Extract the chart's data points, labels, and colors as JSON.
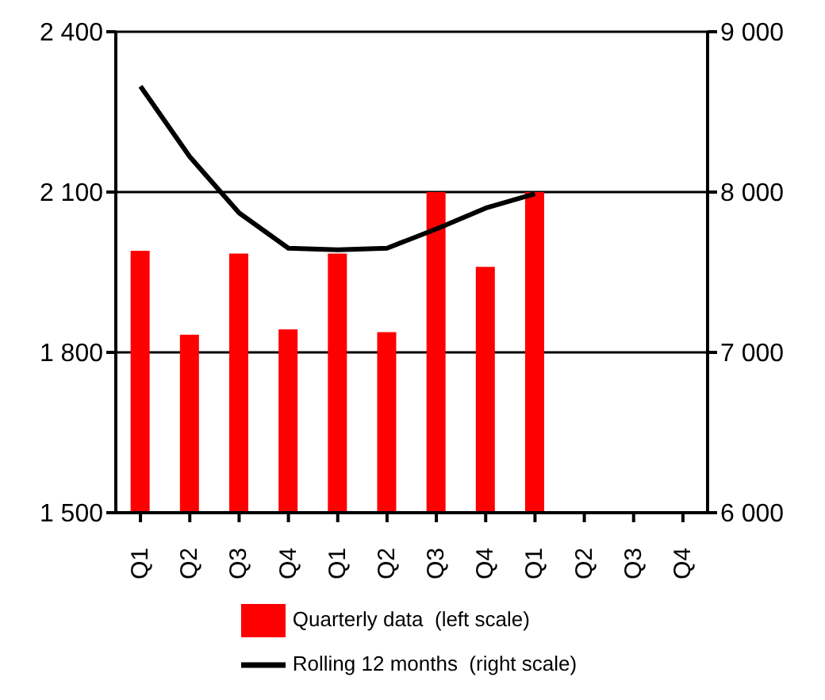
{
  "chart_data": {
    "type": "bar",
    "categories": [
      "Q1",
      "Q2",
      "Q3",
      "Q4",
      "Q1",
      "Q2",
      "Q3",
      "Q4",
      "Q1",
      "Q2",
      "Q3",
      "Q4"
    ],
    "series": [
      {
        "name": "Quarterly data  (left scale)",
        "color": "#ff0000",
        "values": [
          1990,
          1833,
          1985,
          1843,
          1985,
          1838,
          2100,
          1960,
          2100,
          null,
          null,
          null
        ]
      },
      {
        "name": "Rolling 12 months  (right scale)",
        "type": "line",
        "axis": "y2",
        "color": "#000000",
        "values": [
          8660,
          8220,
          7870,
          7650,
          7640,
          7650,
          7770,
          7900,
          7990,
          null,
          null,
          null
        ]
      }
    ],
    "ylim": [
      1500,
      2400
    ],
    "yticks": [
      {
        "value": 1500,
        "label": "1 500"
      },
      {
        "value": 1800,
        "label": "1 800"
      },
      {
        "value": 2100,
        "label": "2 100"
      },
      {
        "value": 2400,
        "label": "2 400"
      }
    ],
    "y2lim": [
      6000,
      9000
    ],
    "y2ticks": [
      {
        "value": 6000,
        "label": "6 000"
      },
      {
        "value": 7000,
        "label": "7 000"
      },
      {
        "value": 8000,
        "label": "8 000"
      },
      {
        "value": 9000,
        "label": "9 000"
      }
    ],
    "grid": "y",
    "legend": "bottom",
    "marker": "none"
  }
}
